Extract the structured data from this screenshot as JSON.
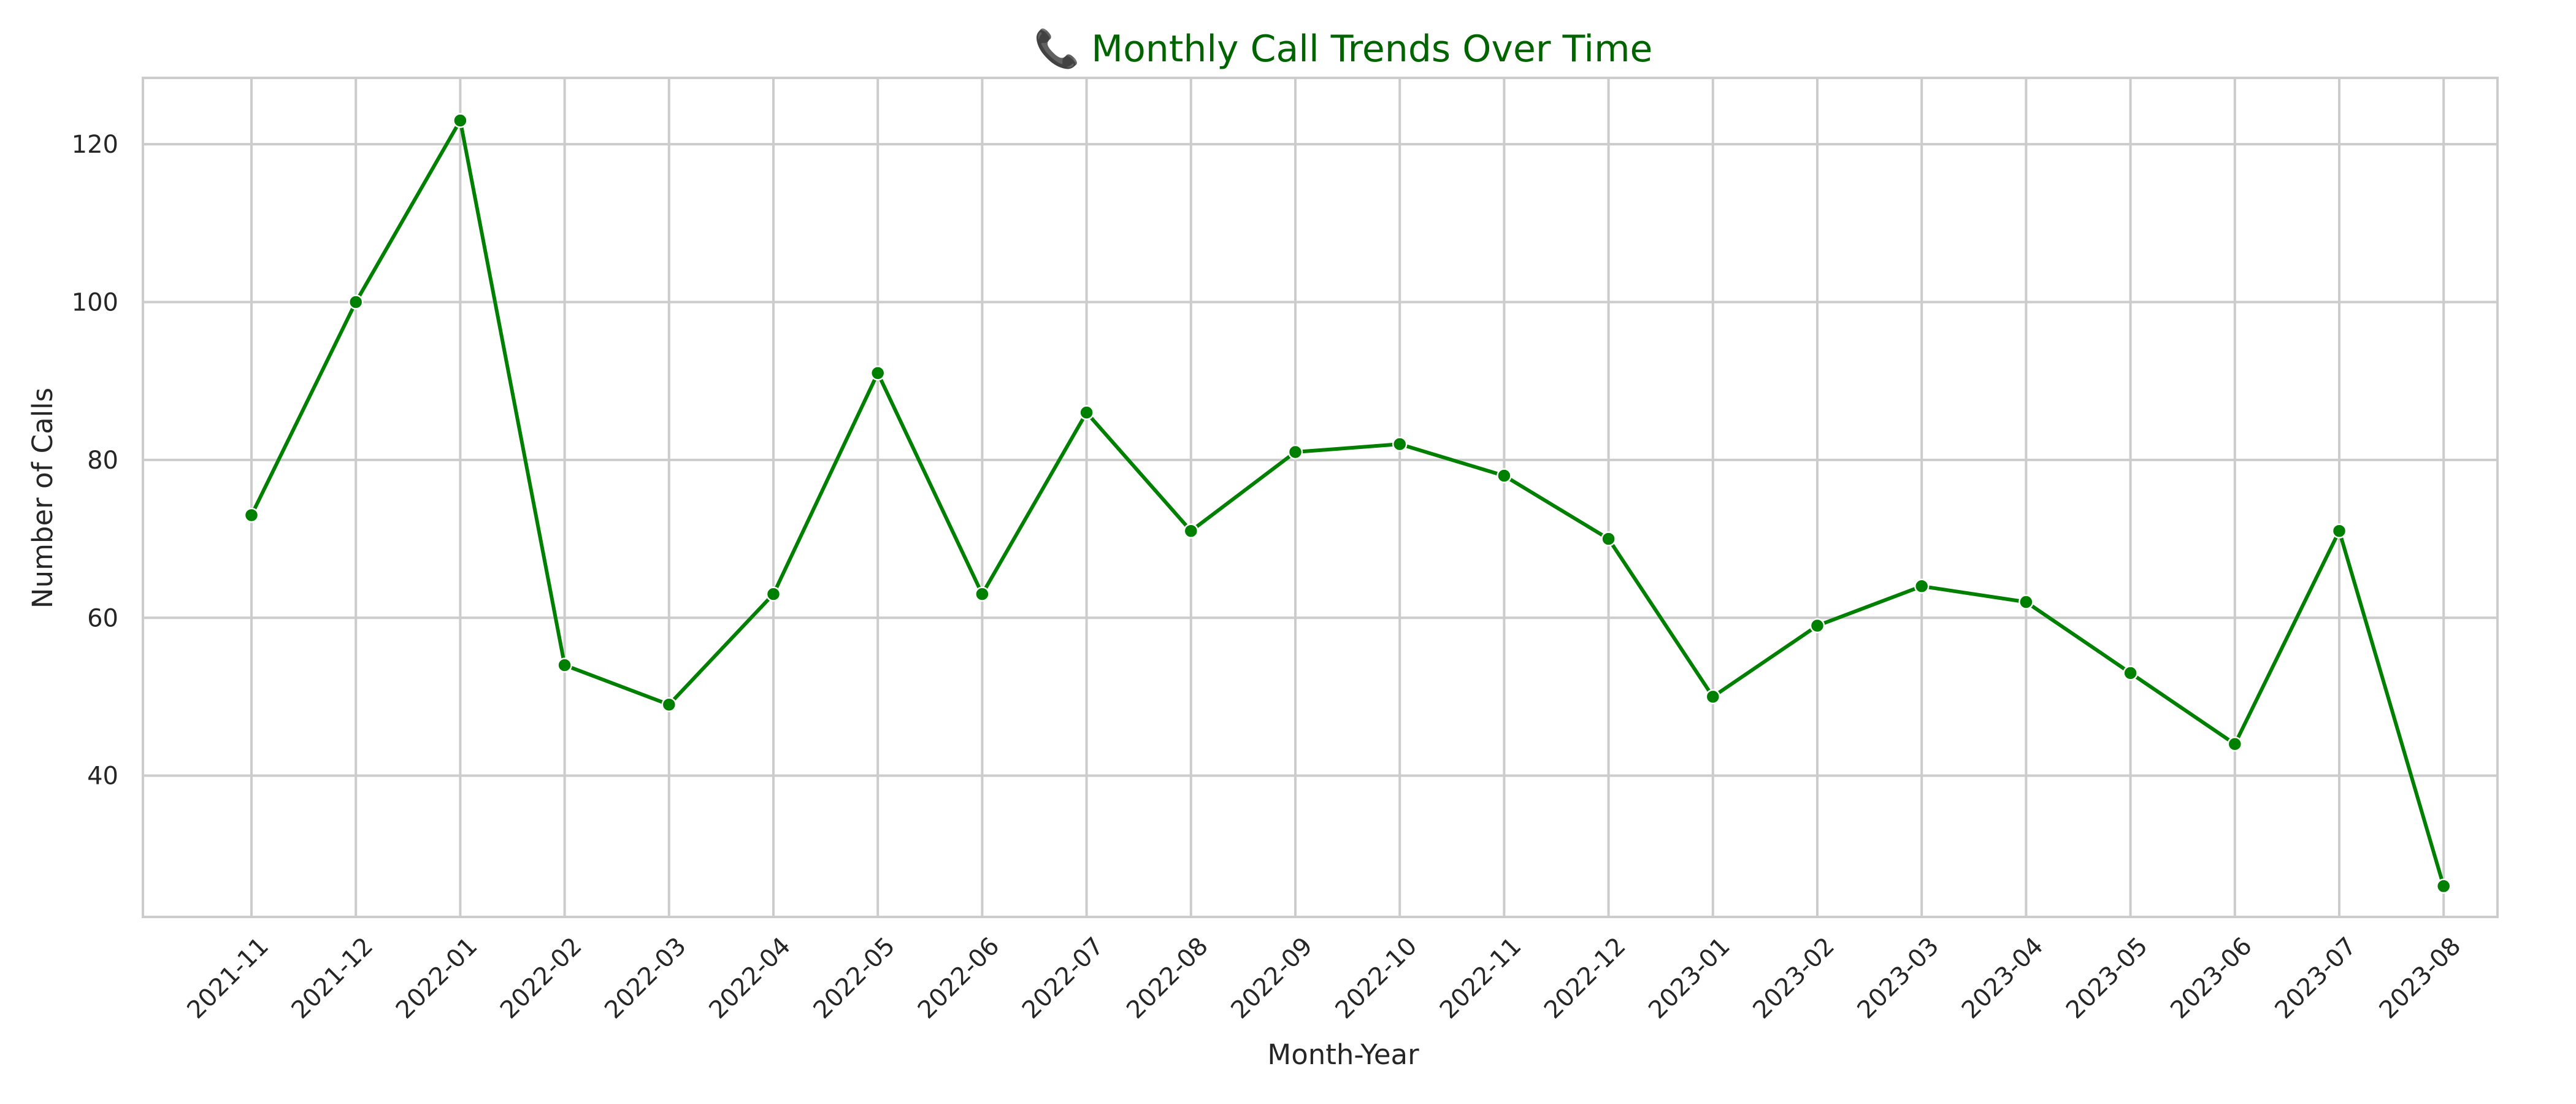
{
  "chart_data": {
    "type": "line",
    "title": "📞 Monthly Call Trends Over Time",
    "xlabel": "Month-Year",
    "ylabel": "Number of Calls",
    "x": [
      "2021-11",
      "2021-12",
      "2022-01",
      "2022-02",
      "2022-03",
      "2022-04",
      "2022-05",
      "2022-06",
      "2022-07",
      "2022-08",
      "2022-09",
      "2022-10",
      "2022-11",
      "2022-12",
      "2023-01",
      "2023-02",
      "2023-03",
      "2023-04",
      "2023-05",
      "2023-06",
      "2023-07",
      "2023-08"
    ],
    "values": [
      73,
      100,
      123,
      54,
      49,
      63,
      91,
      63,
      86,
      71,
      81,
      82,
      78,
      70,
      50,
      59,
      64,
      62,
      53,
      44,
      71,
      26
    ],
    "ylim": [
      22.1,
      128.4
    ],
    "yticks": [
      40,
      60,
      80,
      100,
      120
    ],
    "grid": true,
    "line_color": "#008000",
    "title_color": "#006400"
  }
}
